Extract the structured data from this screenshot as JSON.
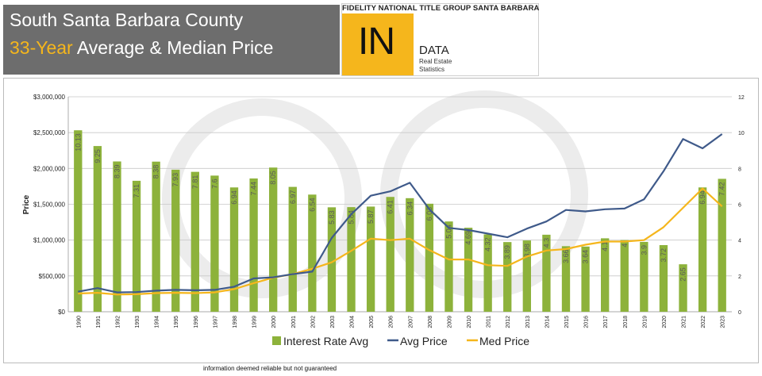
{
  "header": {
    "title_line1": "South Santa Barbara County",
    "title_line2_accent": "33-Year",
    "title_line2_rest": " Average & Median Price",
    "brand_top": "FIDELITY NATIONAL TITLE GROUP SANTA BARBARA",
    "brand_in": "IN",
    "brand_data": "DATA",
    "brand_sub1": "Real Estate",
    "brand_sub2": "Statistics"
  },
  "footnote": "information deemed reliable but not guaranteed",
  "chart_data": {
    "type": "bar+line",
    "title": "33-Year Average & Median Price",
    "ylabel": "Price",
    "ylim": [
      0,
      3000000
    ],
    "y2lim": [
      0,
      12
    ],
    "y_ticks": [
      "$0",
      "$500,000",
      "$1,000,000",
      "$1,500,000",
      "$2,000,000",
      "$2,500,000",
      "$3,000,000"
    ],
    "y2_ticks": [
      "0",
      "2",
      "4",
      "6",
      "8",
      "10",
      "12"
    ],
    "categories": [
      "1990",
      "1991",
      "1992",
      "1993",
      "1994",
      "1995",
      "1996",
      "1997",
      "1998",
      "1999",
      "2000",
      "2001",
      "2002",
      "2003",
      "2004",
      "2005",
      "2006",
      "2007",
      "2008",
      "2009",
      "2010",
      "2011",
      "2012",
      "2013",
      "2014",
      "2015",
      "2016",
      "2017",
      "2018",
      "2019",
      "2020",
      "2021",
      "2022",
      "2023"
    ],
    "interest_rate_labels": [
      "10.13",
      "9.25",
      "8.39",
      "7.31",
      "8.38",
      "7.93",
      "7.81",
      "7.6",
      "6.94",
      "7.44",
      "8.05",
      "6.97",
      "6.54",
      "5.83",
      "5.84",
      "5.87",
      "6.41",
      "6.34",
      "6.03",
      "5.04",
      "4.69",
      "4.32",
      "3.89",
      "3.98",
      "4.3",
      "3.66",
      "3.64",
      "4.1",
      "4",
      "3.9",
      "3.72",
      "2.65",
      "6.94",
      "7.42"
    ],
    "series": [
      {
        "name": "Interest Rate Avg",
        "axis": "right",
        "color": "#8db23b",
        "values": [
          10.13,
          9.25,
          8.39,
          7.31,
          8.38,
          7.93,
          7.81,
          7.6,
          6.94,
          7.44,
          8.05,
          6.97,
          6.54,
          5.83,
          5.84,
          5.87,
          6.41,
          6.34,
          6.03,
          5.04,
          4.69,
          4.32,
          3.89,
          3.98,
          4.3,
          3.66,
          3.64,
          4.1,
          4,
          3.9,
          3.72,
          2.65,
          6.94,
          7.42
        ]
      },
      {
        "name": "Avg Price",
        "axis": "left",
        "color": "#3f5a8a",
        "values": [
          280000,
          330000,
          270000,
          275000,
          295000,
          305000,
          300000,
          305000,
          350000,
          465000,
          480000,
          525000,
          560000,
          1030000,
          1360000,
          1620000,
          1680000,
          1800000,
          1430000,
          1170000,
          1140000,
          1090000,
          1040000,
          1160000,
          1260000,
          1420000,
          1400000,
          1430000,
          1440000,
          1570000,
          1960000,
          2410000,
          2280000,
          2480000
        ]
      },
      {
        "name": "Med Price",
        "axis": "left",
        "color": "#f5b61c",
        "values": [
          255000,
          265000,
          240000,
          245000,
          260000,
          265000,
          260000,
          270000,
          315000,
          400000,
          475000,
          525000,
          600000,
          690000,
          850000,
          1020000,
          1000000,
          1020000,
          860000,
          730000,
          730000,
          650000,
          640000,
          770000,
          855000,
          875000,
          935000,
          980000,
          980000,
          1000000,
          1180000,
          1450000,
          1720000,
          1470000
        ]
      }
    ],
    "legend": [
      "Interest Rate Avg",
      "Avg Price",
      "Med Price"
    ],
    "legend_position": "bottom",
    "grid": true
  }
}
